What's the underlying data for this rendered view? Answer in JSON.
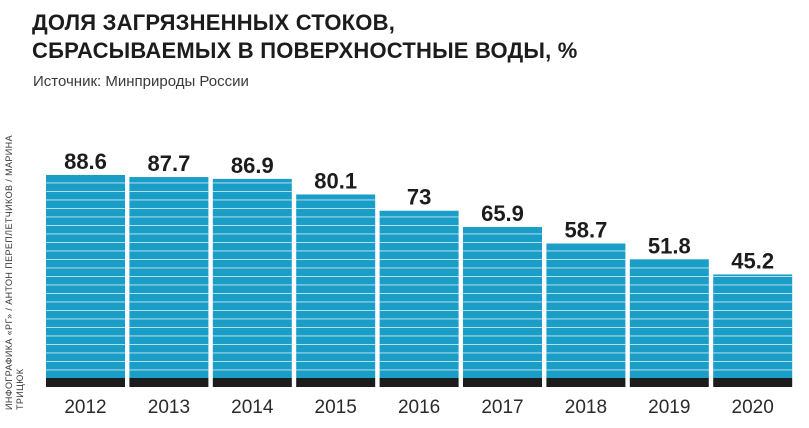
{
  "title_lines": [
    "ДОЛЯ ЗАГРЯЗНЕННЫХ СТОКОВ,",
    "СБРАСЫВАЕМЫХ В ПОВЕРХНОСТНЫЕ ВОДЫ, %"
  ],
  "source": "Источник: Минприроды России",
  "credit": "ИНФОГРАФИКА «РГ» / АНТОН ПЕРЕПЛЕТЧИКОВ / МАРИНА ТРИЦЮК",
  "colors": {
    "bar": "#1a9ec8",
    "stripe": "#ffffff",
    "base": "#1c1c1c",
    "text": "#1c1c1c"
  },
  "chart_data": {
    "type": "bar",
    "categories": [
      "2012",
      "2013",
      "2014",
      "2015",
      "2016",
      "2017",
      "2018",
      "2019",
      "2020"
    ],
    "values": [
      88.6,
      87.7,
      86.9,
      80.1,
      73,
      65.9,
      58.7,
      51.8,
      45.2
    ],
    "value_labels": [
      "88.6",
      "87.7",
      "86.9",
      "80.1",
      "73",
      "65.9",
      "58.7",
      "51.8",
      "45.2"
    ],
    "title": "ДОЛЯ ЗАГРЯЗНЕННЫХ СТОКОВ, СБРАСЫВАЕМЫХ В ПОВЕРХНОСТНЫЕ ВОДЫ, %",
    "xlabel": "",
    "ylabel": "",
    "ylim": [
      0,
      100
    ],
    "grid": false,
    "legend": "none"
  }
}
